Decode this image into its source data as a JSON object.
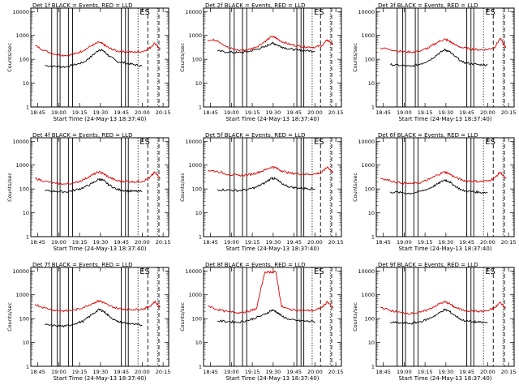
{
  "figure": {
    "shared_xlabel": "Start Time (24-May-13 18:37:40)",
    "shared_ylabel": "Counts/sec",
    "x_ticks": [
      "18:45",
      "19:00",
      "19:15",
      "19:30",
      "19:45",
      "20:00",
      "20:15"
    ],
    "y_ticks": [
      "1",
      "10",
      "100",
      "1000",
      "10000"
    ],
    "colors": {
      "black": "#000000",
      "red": "#dd0000"
    }
  },
  "chart_data": [
    {
      "type": "line",
      "title": "Det 1f BLACK = Events, RED = LLD",
      "annotation": "ES",
      "xlabel": "Start Time (24-May-13 18:37:40)",
      "ylabel": "Counts/sec",
      "xlim": [
        "18:40",
        "20:19"
      ],
      "ylim": [
        1,
        14000
      ],
      "yscale": "log",
      "x_times": [
        "18:43",
        "18:50",
        "18:58",
        "19:05",
        "19:12",
        "19:18",
        "19:24",
        "19:29",
        "19:32",
        "19:36",
        "19:42",
        "19:48",
        "19:54",
        "20:00",
        "20:05",
        "20:09",
        "20:13"
      ],
      "series": [
        {
          "name": "Events",
          "color": "black",
          "values": [
            null,
            55,
            50,
            48,
            60,
            75,
            140,
            250,
            230,
            140,
            80,
            70,
            60,
            52,
            null,
            null,
            null
          ]
        },
        {
          "name": "LLD",
          "color": "red",
          "values": [
            380,
            230,
            160,
            145,
            170,
            240,
            380,
            520,
            430,
            300,
            220,
            210,
            200,
            210,
            280,
            480,
            260
          ]
        }
      ],
      "vertical_lines": {
        "solid": [
          "18:55",
          "18:59",
          "19:01",
          "19:07",
          "19:10",
          "19:45",
          "19:48",
          "19:50"
        ],
        "dotted": [
          "19:57",
          "20:11"
        ],
        "dashed": [
          "20:04",
          "20:12"
        ]
      }
    },
    {
      "type": "line",
      "title": "Det 2f BLACK = Events, RED = LLD",
      "annotation": "ES",
      "xlabel": "Start Time (24-May-13 18:37:40)",
      "ylabel": "Counts/sec",
      "xlim": [
        "18:40",
        "20:19"
      ],
      "ylim": [
        1,
        14000
      ],
      "yscale": "log",
      "x_times": [
        "18:43",
        "18:50",
        "18:58",
        "19:05",
        "19:12",
        "19:18",
        "19:24",
        "19:29",
        "19:32",
        "19:36",
        "19:42",
        "19:48",
        "19:54",
        "20:00",
        "20:05",
        "20:09",
        "20:13"
      ],
      "series": [
        {
          "name": "Events",
          "color": "black",
          "values": [
            null,
            220,
            200,
            190,
            210,
            260,
            330,
            480,
            430,
            330,
            270,
            240,
            230,
            220,
            null,
            null,
            null
          ]
        },
        {
          "name": "LLD",
          "color": "red",
          "values": [
            650,
            620,
            300,
            240,
            250,
            330,
            550,
            900,
            780,
            560,
            420,
            360,
            330,
            320,
            380,
            650,
            400
          ]
        }
      ],
      "vertical_lines": {
        "solid": [
          "18:59",
          "19:02",
          "19:08",
          "19:11",
          "19:47",
          "19:50",
          "19:52"
        ],
        "dotted": [
          "19:58",
          "20:11"
        ],
        "dashed": [
          "20:04",
          "20:12"
        ]
      }
    },
    {
      "type": "line",
      "title": "Det 3f BLACK = Events, RED = LLD",
      "annotation": "ES",
      "xlabel": "Start Time (24-May-13 18:37:40)",
      "ylabel": "Counts/sec",
      "xlim": [
        "18:40",
        "20:19"
      ],
      "ylim": [
        1,
        14000
      ],
      "yscale": "log",
      "x_times": [
        "18:43",
        "18:50",
        "18:58",
        "19:05",
        "19:12",
        "19:18",
        "19:24",
        "19:29",
        "19:32",
        "19:36",
        "19:42",
        "19:48",
        "19:54",
        "20:00",
        "20:05",
        "20:09",
        "20:13"
      ],
      "series": [
        {
          "name": "Events",
          "color": "black",
          "values": [
            null,
            60,
            55,
            50,
            65,
            90,
            160,
            250,
            220,
            140,
            75,
            65,
            60,
            58,
            null,
            null,
            null
          ]
        },
        {
          "name": "LLD",
          "color": "red",
          "values": [
            300,
            260,
            210,
            200,
            230,
            310,
            520,
            700,
            600,
            420,
            300,
            270,
            250,
            260,
            320,
            750,
            300
          ]
        }
      ],
      "vertical_lines": {
        "solid": [
          "18:55",
          "18:59",
          "19:01",
          "19:08",
          "19:10",
          "19:45",
          "19:48",
          "19:50"
        ],
        "dotted": [
          "19:57",
          "20:11"
        ],
        "dashed": [
          "20:04",
          "20:12"
        ]
      }
    },
    {
      "type": "line",
      "title": "Det 4f BLACK = Events, RED = LLD",
      "annotation": "ES",
      "xlabel": "Start Time (24-May-13 18:37:40)",
      "ylabel": "Counts/sec",
      "xlim": [
        "18:40",
        "20:19"
      ],
      "ylim": [
        1,
        14000
      ],
      "yscale": "log",
      "x_times": [
        "18:43",
        "18:50",
        "18:58",
        "19:05",
        "19:12",
        "19:18",
        "19:24",
        "19:29",
        "19:32",
        "19:36",
        "19:42",
        "19:48",
        "19:54",
        "20:00",
        "20:05",
        "20:09",
        "20:13"
      ],
      "series": [
        {
          "name": "Events",
          "color": "black",
          "values": [
            null,
            85,
            80,
            75,
            90,
            115,
            170,
            260,
            230,
            150,
            95,
            85,
            80,
            78,
            null,
            null,
            null
          ]
        },
        {
          "name": "LLD",
          "color": "red",
          "values": [
            280,
            210,
            170,
            160,
            180,
            250,
            380,
            520,
            440,
            310,
            220,
            210,
            200,
            210,
            280,
            500,
            270
          ]
        }
      ],
      "vertical_lines": {
        "solid": [
          "18:55",
          "18:59",
          "19:01",
          "19:07",
          "19:10",
          "19:45",
          "19:48",
          "19:50"
        ],
        "dotted": [
          "19:57",
          "20:11"
        ],
        "dashed": [
          "20:04",
          "20:12"
        ]
      }
    },
    {
      "type": "line",
      "title": "Det 5f BLACK = Events, RED = LLD",
      "annotation": "ES",
      "xlabel": "Start Time (24-May-13 18:37:40)",
      "ylabel": "Counts/sec",
      "xlim": [
        "18:40",
        "20:19"
      ],
      "ylim": [
        1,
        14000
      ],
      "yscale": "log",
      "x_times": [
        "18:43",
        "18:50",
        "18:58",
        "19:05",
        "19:12",
        "19:18",
        "19:24",
        "19:29",
        "19:32",
        "19:36",
        "19:42",
        "19:48",
        "19:54",
        "20:00",
        "20:05",
        "20:09",
        "20:13"
      ],
      "series": [
        {
          "name": "Events",
          "color": "black",
          "values": [
            null,
            95,
            90,
            85,
            95,
            120,
            180,
            290,
            260,
            170,
            120,
            110,
            105,
            100,
            null,
            null,
            null
          ]
        },
        {
          "name": "LLD",
          "color": "red",
          "values": [
            600,
            540,
            400,
            370,
            390,
            470,
            620,
            850,
            760,
            580,
            460,
            430,
            410,
            420,
            500,
            850,
            480
          ]
        }
      ],
      "vertical_lines": {
        "solid": [
          "18:59",
          "19:02",
          "19:08",
          "19:11",
          "19:47",
          "19:50",
          "19:52"
        ],
        "dotted": [
          "19:58",
          "20:11"
        ],
        "dashed": [
          "20:04",
          "20:12"
        ]
      }
    },
    {
      "type": "line",
      "title": "Det 6f BLACK = Events, RED = LLD",
      "annotation": "ES",
      "xlabel": "Start Time (24-May-13 18:37:40)",
      "ylabel": "Counts/sec",
      "xlim": [
        "18:40",
        "20:19"
      ],
      "ylim": [
        1,
        14000
      ],
      "yscale": "log",
      "x_times": [
        "18:43",
        "18:50",
        "18:58",
        "19:05",
        "19:12",
        "19:18",
        "19:24",
        "19:29",
        "19:32",
        "19:36",
        "19:42",
        "19:48",
        "19:54",
        "20:00",
        "20:05",
        "20:09",
        "20:13"
      ],
      "series": [
        {
          "name": "Events",
          "color": "black",
          "values": [
            null,
            75,
            70,
            65,
            80,
            105,
            160,
            240,
            210,
            140,
            85,
            78,
            72,
            70,
            null,
            null,
            null
          ]
        },
        {
          "name": "LLD",
          "color": "red",
          "values": [
            290,
            220,
            175,
            165,
            185,
            255,
            390,
            520,
            450,
            320,
            230,
            215,
            205,
            215,
            285,
            510,
            275
          ]
        }
      ],
      "vertical_lines": {
        "solid": [
          "18:55",
          "18:59",
          "19:01",
          "19:07",
          "19:10",
          "19:45",
          "19:48",
          "19:50"
        ],
        "dotted": [
          "19:57",
          "20:11"
        ],
        "dashed": [
          "20:04",
          "20:12"
        ]
      }
    },
    {
      "type": "line",
      "title": "Det 7f BLACK = Events, RED = LLD",
      "annotation": "ES",
      "xlabel": "Start Time (24-May-13 18:37:40)",
      "ylabel": "Counts/sec",
      "xlim": [
        "18:40",
        "20:19"
      ],
      "ylim": [
        1,
        14000
      ],
      "yscale": "log",
      "x_times": [
        "18:43",
        "18:50",
        "18:58",
        "19:05",
        "19:12",
        "19:18",
        "19:24",
        "19:29",
        "19:32",
        "19:36",
        "19:42",
        "19:48",
        "19:54",
        "20:00",
        "20:05",
        "20:09",
        "20:13"
      ],
      "series": [
        {
          "name": "Events",
          "color": "black",
          "values": [
            null,
            55,
            50,
            48,
            62,
            80,
            150,
            240,
            210,
            130,
            75,
            65,
            58,
            52,
            null,
            null,
            null
          ]
        },
        {
          "name": "LLD",
          "color": "red",
          "values": [
            400,
            280,
            220,
            210,
            230,
            300,
            430,
            560,
            480,
            350,
            270,
            250,
            240,
            250,
            310,
            520,
            300
          ]
        }
      ],
      "vertical_lines": {
        "solid": [
          "18:55",
          "18:59",
          "19:01",
          "19:07",
          "19:10",
          "19:45",
          "19:48",
          "19:50"
        ],
        "dotted": [
          "19:57",
          "20:11"
        ],
        "dashed": [
          "20:04",
          "20:12"
        ]
      }
    },
    {
      "type": "line",
      "title": "Det 8f BLACK = Events, RED = LLD",
      "annotation": "ES",
      "xlabel": "Start Time (24-May-13 18:37:40)",
      "ylabel": "Counts/sec",
      "xlim": [
        "18:40",
        "20:19"
      ],
      "ylim": [
        1,
        14000
      ],
      "yscale": "log",
      "x_times": [
        "18:43",
        "18:50",
        "18:58",
        "19:05",
        "19:12",
        "19:18",
        "19:24",
        "19:29",
        "19:32",
        "19:36",
        "19:42",
        "19:48",
        "19:54",
        "20:00",
        "20:05",
        "20:09",
        "20:13"
      ],
      "series": [
        {
          "name": "Events",
          "color": "black",
          "values": [
            null,
            80,
            75,
            70,
            85,
            110,
            150,
            230,
            200,
            130,
            90,
            82,
            78,
            75,
            null,
            null,
            null
          ]
        },
        {
          "name": "LLD",
          "color": "red",
          "values": [
            350,
            240,
            190,
            180,
            200,
            260,
            9000,
            9000,
            9000,
            320,
            240,
            225,
            215,
            225,
            290,
            520,
            280
          ]
        }
      ],
      "vertical_lines": {
        "solid": [
          "18:59",
          "19:02",
          "19:08",
          "19:11",
          "19:47",
          "19:50",
          "19:52"
        ],
        "dotted": [
          "19:58",
          "20:11"
        ],
        "dashed": [
          "20:04",
          "20:12"
        ]
      }
    },
    {
      "type": "line",
      "title": "Det 9f BLACK = Events, RED = LLD",
      "annotation": "ES",
      "xlabel": "Start Time (24-May-13 18:37:40)",
      "ylabel": "Counts/sec",
      "xlim": [
        "18:40",
        "20:19"
      ],
      "ylim": [
        1,
        14000
      ],
      "yscale": "log",
      "x_times": [
        "18:43",
        "18:50",
        "18:58",
        "19:05",
        "19:12",
        "19:18",
        "19:24",
        "19:29",
        "19:32",
        "19:36",
        "19:42",
        "19:48",
        "19:54",
        "20:00",
        "20:05",
        "20:09",
        "20:13"
      ],
      "series": [
        {
          "name": "Events",
          "color": "black",
          "values": [
            null,
            70,
            65,
            62,
            75,
            100,
            155,
            240,
            210,
            140,
            85,
            75,
            70,
            68,
            null,
            null,
            null
          ]
        },
        {
          "name": "LLD",
          "color": "red",
          "values": [
            300,
            220,
            175,
            165,
            185,
            250,
            380,
            510,
            440,
            310,
            225,
            210,
            200,
            210,
            280,
            480,
            270
          ]
        }
      ],
      "vertical_lines": {
        "solid": [
          "18:55",
          "18:59",
          "19:01",
          "19:07",
          "19:10",
          "19:45",
          "19:48",
          "19:50"
        ],
        "dotted": [
          "19:57",
          "20:11"
        ],
        "dashed": [
          "20:04",
          "20:12"
        ]
      }
    }
  ]
}
